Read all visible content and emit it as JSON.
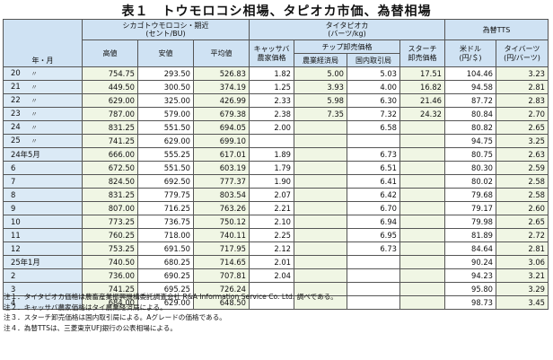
{
  "title": "表１　トウモロコシ相場、タピオカ市価、為替相場",
  "headers": {
    "year_month": "年・月",
    "chicago": "シカゴトウモロコシ・期近",
    "chicago_unit": "(セント/BU)",
    "high": "高値",
    "low": "安値",
    "avg": "平均値",
    "thai": "タイタピオカ",
    "thai_unit": "(バーツ/kg)",
    "cassava_a": "キャッサバ",
    "cassava_b": "農家価格",
    "chip": "チップ卸売価格",
    "agri": "農業経済局",
    "domestic": "国内取引局",
    "starch_a": "スターチ",
    "starch_b": "卸売価格",
    "fx": "為替TTS",
    "usd_a": "米ドル",
    "usd_b": "(円/＄)",
    "baht_a": "タイバーツ",
    "baht_b": "(円/バーツ)"
  },
  "rows": [
    {
      "y": "20",
      "m": "〃",
      "high": "754.75",
      "low": "293.50",
      "avg": "526.83",
      "cassava": "1.82",
      "agri": "5.00",
      "dom": "5.03",
      "starch": "17.51",
      "usd": "104.46",
      "baht": "3.23"
    },
    {
      "y": "21",
      "m": "〃",
      "high": "449.50",
      "low": "300.50",
      "avg": "374.19",
      "cassava": "1.25",
      "agri": "3.93",
      "dom": "4.00",
      "starch": "16.82",
      "usd": "94.58",
      "baht": "2.81"
    },
    {
      "y": "22",
      "m": "〃",
      "high": "629.00",
      "low": "325.00",
      "avg": "426.99",
      "cassava": "2.33",
      "agri": "5.98",
      "dom": "6.30",
      "starch": "21.46",
      "usd": "87.72",
      "baht": "2.83"
    },
    {
      "y": "23",
      "m": "〃",
      "high": "787.00",
      "low": "579.00",
      "avg": "679.38",
      "cassava": "2.38",
      "agri": "7.35",
      "dom": "7.32",
      "starch": "24.32",
      "usd": "80.84",
      "baht": "2.70"
    },
    {
      "y": "24",
      "m": "〃",
      "high": "831.25",
      "low": "551.50",
      "avg": "694.05",
      "cassava": "2.00",
      "agri": "",
      "dom": "6.58",
      "starch": "",
      "usd": "80.82",
      "baht": "2.65"
    },
    {
      "y": "25",
      "m": "〃",
      "high": "741.25",
      "low": "629.00",
      "avg": "699.10",
      "cassava": "",
      "agri": "",
      "dom": "",
      "starch": "",
      "usd": "94.75",
      "baht": "3.25"
    },
    {
      "y": "24年5月",
      "m": "",
      "high": "666.00",
      "low": "555.25",
      "avg": "617.01",
      "cassava": "1.89",
      "agri": "",
      "dom": "6.73",
      "starch": "",
      "usd": "80.75",
      "baht": "2.63"
    },
    {
      "y": "6",
      "m": "",
      "high": "672.50",
      "low": "551.50",
      "avg": "603.19",
      "cassava": "1.79",
      "agri": "",
      "dom": "6.51",
      "starch": "",
      "usd": "80.30",
      "baht": "2.59"
    },
    {
      "y": "7",
      "m": "",
      "high": "824.50",
      "low": "692.50",
      "avg": "777.37",
      "cassava": "1.90",
      "agri": "",
      "dom": "6.41",
      "starch": "",
      "usd": "80.02",
      "baht": "2.58"
    },
    {
      "y": "8",
      "m": "",
      "high": "831.25",
      "low": "779.75",
      "avg": "803.54",
      "cassava": "2.07",
      "agri": "",
      "dom": "6.42",
      "starch": "",
      "usd": "79.68",
      "baht": "2.58"
    },
    {
      "y": "9",
      "m": "",
      "high": "807.00",
      "low": "716.25",
      "avg": "763.26",
      "cassava": "2.21",
      "agri": "",
      "dom": "6.70",
      "starch": "",
      "usd": "79.17",
      "baht": "2.60"
    },
    {
      "y": "10",
      "m": "",
      "high": "773.25",
      "low": "736.75",
      "avg": "750.12",
      "cassava": "2.10",
      "agri": "",
      "dom": "6.94",
      "starch": "",
      "usd": "79.98",
      "baht": "2.65"
    },
    {
      "y": "11",
      "m": "",
      "high": "760.25",
      "low": "718.00",
      "avg": "740.11",
      "cassava": "2.25",
      "agri": "",
      "dom": "6.95",
      "starch": "",
      "usd": "81.89",
      "baht": "2.72"
    },
    {
      "y": "12",
      "m": "",
      "high": "753.25",
      "low": "691.50",
      "avg": "717.95",
      "cassava": "2.12",
      "agri": "",
      "dom": "6.73",
      "starch": "",
      "usd": "84.64",
      "baht": "2.81"
    },
    {
      "y": "25年1月",
      "m": "",
      "high": "740.50",
      "low": "680.25",
      "avg": "714.65",
      "cassava": "2.01",
      "agri": "",
      "dom": "",
      "starch": "",
      "usd": "90.24",
      "baht": "3.06"
    },
    {
      "y": "2",
      "m": "",
      "high": "736.00",
      "low": "690.25",
      "avg": "707.81",
      "cassava": "2.04",
      "agri": "",
      "dom": "",
      "starch": "",
      "usd": "94.23",
      "baht": "3.21"
    },
    {
      "y": "3",
      "m": "",
      "high": "741.25",
      "low": "695.25",
      "avg": "726.24",
      "cassava": "",
      "agri": "",
      "dom": "",
      "starch": "",
      "usd": "95.80",
      "baht": "3.29"
    },
    {
      "y": "4",
      "m": "",
      "high": "684.00",
      "low": "629.00",
      "avg": "648.50",
      "cassava": "",
      "agri": "",
      "dom": "",
      "starch": "",
      "usd": "98.73",
      "baht": "3.45"
    }
  ],
  "notes": [
    "注１．タイタピオカ価格は農畜産業振興機構委託調査会社 R&A Information Service Co. Ltd. 調べである。",
    "注２．キャッサバ農家価格はタイ農業経済局による。",
    "注３．スターチ卸売価格は国内取引局による。Aグレードの価格である。",
    "注４．為替TTSは、三菱東京UFJ銀行の公表相場による。"
  ]
}
